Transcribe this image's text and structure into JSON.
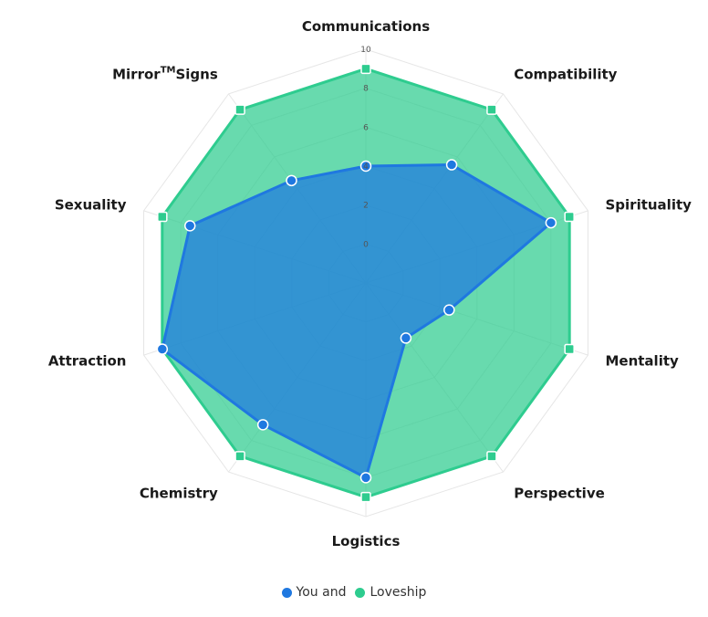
{
  "chart_data": {
    "type": "radar",
    "categories": [
      "Communications",
      "Compatibility",
      "Spirituality",
      "Mentality",
      "Perspective",
      "Logistics",
      "Chemistry",
      "Attraction",
      "Sexuality",
      "Mirror™Signs"
    ],
    "category_parts": [
      {
        "main": "Communications"
      },
      {
        "main": "Compatibility"
      },
      {
        "main": "Spirituality"
      },
      {
        "main": "Mentality"
      },
      {
        "main": "Perspective"
      },
      {
        "main": "Logistics"
      },
      {
        "main": "Chemistry"
      },
      {
        "main": "Attraction"
      },
      {
        "main": "Sexuality"
      },
      {
        "main": "Mirror",
        "sup": "TM",
        "after": "Signs"
      }
    ],
    "rmin": -2,
    "rmax": 10,
    "ticks": [
      0,
      2,
      4,
      6,
      8,
      10
    ],
    "series": [
      {
        "name": "Loveship",
        "values": [
          9,
          9,
          9,
          9,
          9,
          9,
          9,
          9,
          9,
          9
        ],
        "color": "#2ecc8f",
        "marker": "square"
      },
      {
        "name": "You and",
        "values": [
          4,
          5.5,
          8,
          2.5,
          1.5,
          8,
          7,
          9,
          7.5,
          4.5
        ],
        "color": "#1f78e0",
        "marker": "circle"
      }
    ],
    "legend": [
      {
        "name": "You and",
        "color": "#1f78e0"
      },
      {
        "name": "Loveship",
        "color": "#2ecc8f"
      }
    ],
    "legend_position": "bottom"
  }
}
